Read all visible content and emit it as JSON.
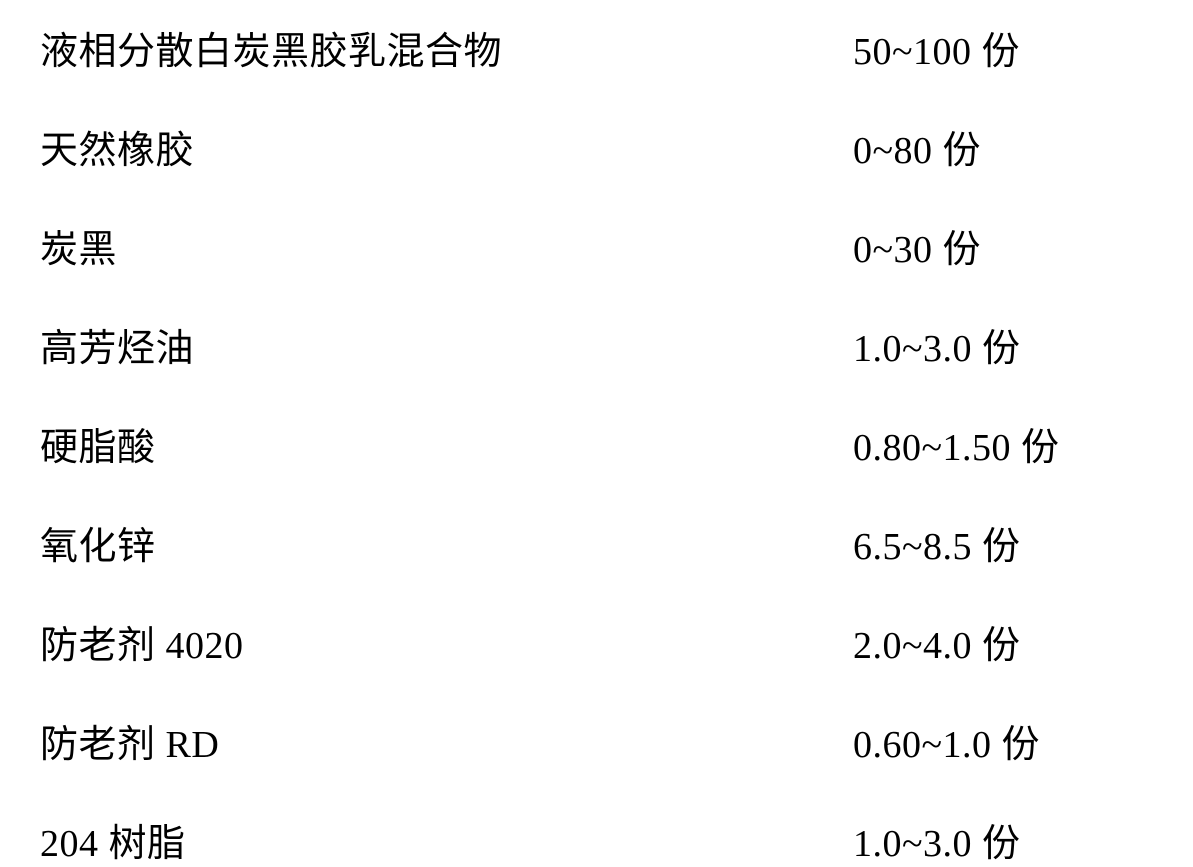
{
  "rows": [
    {
      "label": "液相分散白炭黑胶乳混合物",
      "value": "50~100 份"
    },
    {
      "label": "天然橡胶",
      "value": "0~80 份"
    },
    {
      "label": "炭黑",
      "value": "0~30 份"
    },
    {
      "label": "高芳烃油",
      "value": "1.0~3.0 份"
    },
    {
      "label": "硬脂酸",
      "value": "0.80~1.50 份"
    },
    {
      "label": "氧化锌",
      "value": "6.5~8.5 份"
    },
    {
      "label": "防老剂 4020",
      "value": "2.0~4.0 份"
    },
    {
      "label": "防老剂 RD",
      "value": "0.60~1.0 份"
    },
    {
      "label": "204 树脂",
      "value": "1.0~3.0 份"
    }
  ],
  "styles": {
    "font_size": 38,
    "text_color": "#000000",
    "background_color": "#ffffff",
    "row_spacing": 44
  }
}
